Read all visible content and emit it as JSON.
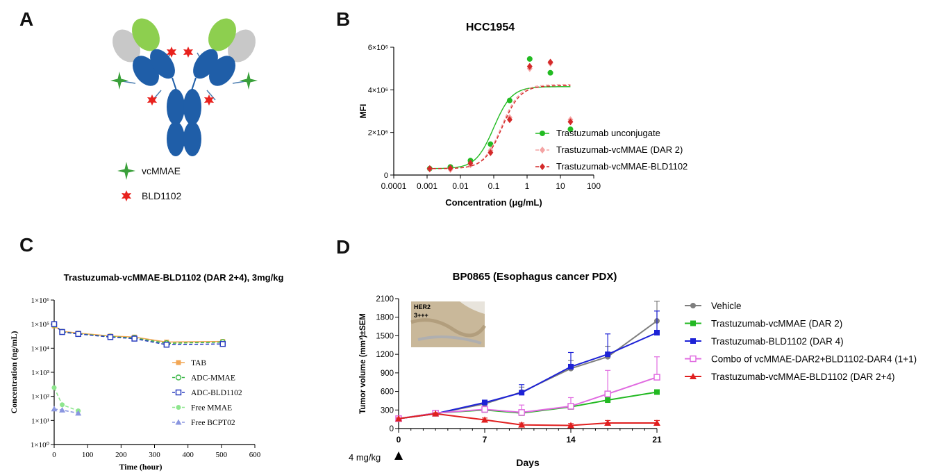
{
  "panels": {
    "A": "A",
    "B": "B",
    "C": "C",
    "D": "D"
  },
  "panelA": {
    "legend": [
      {
        "label": "vcMMAE",
        "color": "#3aa03a",
        "icon": "four-point-star-icon"
      },
      {
        "label": "BLD1102",
        "color": "#e8211d",
        "icon": "six-point-star-icon"
      }
    ],
    "colors": {
      "heavy_chain": "#1f5ea8",
      "light_chain_variable": "#8dcf4f",
      "light_chain_constant": "#c8c8c8"
    }
  },
  "chart_data": [
    {
      "id": "B",
      "type": "scatter",
      "title": "HCC1954",
      "xlabel": "Concentration (μg/mL)",
      "ylabel": "MFI",
      "xscale": "log",
      "xlim": [
        0.0001,
        100
      ],
      "ylim": [
        0,
        6000000
      ],
      "xticks": [
        0.0001,
        0.001,
        0.01,
        0.1,
        1,
        10,
        100
      ],
      "xtick_labels": [
        "0.0001",
        "0.001",
        "0.01",
        "0.1",
        "1",
        "10",
        "100"
      ],
      "yticks": [
        0,
        2000000,
        4000000,
        6000000
      ],
      "ytick_labels": [
        "0",
        "2×10⁶",
        "4×10⁶",
        "6×10⁶"
      ],
      "legend_position": "bottom-right",
      "series": [
        {
          "name": "Trastuzumab unconjugate",
          "color": "#22bb22",
          "marker": "circle",
          "line": "solid",
          "x": [
            0.0012,
            0.005,
            0.02,
            0.08,
            0.3,
            1.2,
            5,
            20
          ],
          "y": [
            300000,
            380000,
            680000,
            1450000,
            3500000,
            5450000,
            4800000,
            2150000
          ],
          "fit_ec50": 0.1,
          "fit_top": 4150000,
          "fit_bottom": 300000
        },
        {
          "name": "Trastuzumab-vcMMAE (DAR 2)",
          "color": "#f4a3a3",
          "marker": "diamond",
          "line": "dashed",
          "x": [
            0.0012,
            0.005,
            0.02,
            0.08,
            0.3,
            1.2,
            5,
            20
          ],
          "y": [
            280000,
            260000,
            480000,
            1150000,
            2700000,
            5000000,
            5250000,
            2600000
          ],
          "fit_ec50": 0.17,
          "fit_top": 4250000,
          "fit_bottom": 300000
        },
        {
          "name": "Trastuzumab-vcMMAE-BLD1102",
          "color": "#d42a2a",
          "marker": "diamond",
          "line": "dashed",
          "x": [
            0.0012,
            0.005,
            0.02,
            0.08,
            0.3,
            1.2,
            5,
            20
          ],
          "y": [
            300000,
            320000,
            560000,
            1050000,
            2600000,
            5100000,
            5300000,
            2500000
          ],
          "fit_ec50": 0.18,
          "fit_top": 4200000,
          "fit_bottom": 300000
        }
      ]
    },
    {
      "id": "C",
      "type": "line",
      "title": "Trastuzumab-vcMMAE-BLD1102 (DAR 2+4), 3mg/kg",
      "xlabel": "Time (hour)",
      "ylabel": "Concentration (ng/mL)",
      "yscale": "log",
      "xlim": [
        0,
        600
      ],
      "ylim": [
        1,
        1000000
      ],
      "xticks": [
        0,
        100,
        200,
        300,
        400,
        500,
        600
      ],
      "xtick_labels": [
        "0",
        "100",
        "200",
        "300",
        "400",
        "500",
        "600"
      ],
      "yticks": [
        1,
        10,
        100,
        1000,
        10000,
        100000,
        1000000
      ],
      "ytick_labels": [
        "1×10⁰",
        "1×10¹",
        "1×10²",
        "1×10³",
        "1×10⁴",
        "1×10⁵",
        "1×10⁶"
      ],
      "legend_position": "bottom-right",
      "series": [
        {
          "name": "TAB",
          "color": "#f2a654",
          "marker": "square",
          "line": "solid",
          "x": [
            0,
            24,
            72,
            168,
            240,
            336,
            504
          ],
          "y": [
            85000,
            50000,
            42000,
            32000,
            29000,
            18000,
            19000
          ]
        },
        {
          "name": "ADC-MMAE",
          "color": "#3fb84a",
          "marker": "circle-open",
          "line": "dashed",
          "x": [
            0,
            24,
            72,
            168,
            240,
            336,
            504
          ],
          "y": [
            95000,
            48000,
            40000,
            30000,
            27000,
            16000,
            18000
          ]
        },
        {
          "name": "ADC-BLD1102",
          "color": "#2b3fbf",
          "marker": "square-open",
          "line": "dashed",
          "x": [
            0,
            24,
            72,
            168,
            240,
            336,
            504
          ],
          "y": [
            100000,
            47000,
            39000,
            29000,
            25000,
            14000,
            15000
          ]
        },
        {
          "name": "Free MMAE",
          "color": "#8ee68e",
          "marker": "circle",
          "line": "dashed",
          "x": [
            0,
            24,
            72
          ],
          "y": [
            230,
            45,
            25
          ]
        },
        {
          "name": "Free BCPT02",
          "color": "#8a96e0",
          "marker": "triangle",
          "line": "dashed",
          "x": [
            0,
            24,
            72
          ],
          "y": [
            30,
            27,
            20
          ]
        }
      ]
    },
    {
      "id": "D",
      "type": "line",
      "title": "BP0865 (Esophagus cancer PDX)",
      "xlabel": "Days",
      "ylabel": "Tumor volume (mm³)±SEM",
      "xlim": [
        0,
        21
      ],
      "ylim": [
        0,
        2100
      ],
      "xticks": [
        0,
        7,
        14,
        21
      ],
      "xtick_labels": [
        "0",
        "7",
        "14",
        "21"
      ],
      "yticks": [
        0,
        300,
        600,
        900,
        1200,
        1500,
        1800,
        2100
      ],
      "ytick_labels": [
        "0",
        "300",
        "600",
        "900",
        "1200",
        "1500",
        "1800",
        "2100"
      ],
      "dosing_annotation": "4 mg/kg",
      "inset": {
        "line1": "HER2",
        "line2": "3+++"
      },
      "legend_position": "right",
      "series": [
        {
          "name": "Vehicle",
          "color": "#7f7f7f",
          "marker": "circle",
          "x": [
            0,
            3,
            7,
            10,
            14,
            17,
            21
          ],
          "y": [
            160,
            240,
            400,
            590,
            970,
            1160,
            1740
          ],
          "err": [
            10,
            20,
            40,
            80,
            130,
            170,
            320
          ]
        },
        {
          "name": "Trastuzumab-vcMMAE (DAR 2)",
          "color": "#22b922",
          "marker": "square",
          "x": [
            0,
            3,
            7,
            10,
            14,
            17,
            21
          ],
          "y": [
            160,
            250,
            300,
            250,
            350,
            460,
            590
          ],
          "err": [
            10,
            15,
            30,
            30,
            40,
            40,
            30
          ]
        },
        {
          "name": "Trastuzumab-BLD1102 (DAR 4)",
          "color": "#1d22d6",
          "marker": "square",
          "x": [
            0,
            3,
            7,
            10,
            14,
            17,
            21
          ],
          "y": [
            160,
            240,
            420,
            580,
            1000,
            1200,
            1550
          ],
          "err": [
            10,
            20,
            40,
            130,
            230,
            330,
            350
          ]
        },
        {
          "name": "Combo of vcMMAE-DAR2+BLD1102-DAR4 (1+1)",
          "color": "#e06ae0",
          "marker": "square-open",
          "x": [
            0,
            3,
            7,
            10,
            14,
            17,
            21
          ],
          "y": [
            160,
            250,
            310,
            260,
            360,
            560,
            830
          ],
          "err": [
            10,
            20,
            40,
            120,
            140,
            380,
            330
          ]
        },
        {
          "name": "Trastuzumab-vcMMAE-BLD1102 (DAR 2+4)",
          "color": "#e01f1f",
          "marker": "triangle",
          "x": [
            0,
            3,
            7,
            10,
            14,
            17,
            21
          ],
          "y": [
            160,
            240,
            140,
            60,
            50,
            90,
            90
          ],
          "err": [
            10,
            15,
            30,
            30,
            30,
            40,
            40
          ]
        }
      ]
    }
  ]
}
